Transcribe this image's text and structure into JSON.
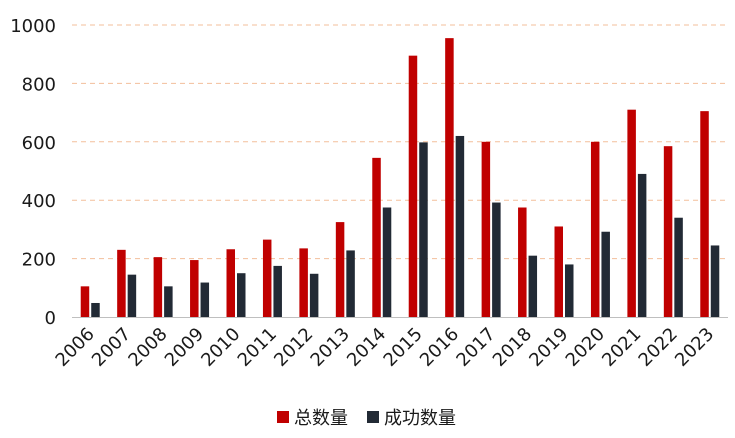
{
  "chart_data": {
    "type": "bar",
    "title": "",
    "xlabel": "",
    "ylabel": "",
    "ylim": [
      0,
      1000
    ],
    "yticks": [
      0,
      200,
      400,
      600,
      800,
      1000
    ],
    "grid": "horizontal-dashed",
    "legend_position": "bottom-center",
    "categories": [
      "2006",
      "2007",
      "2008",
      "2009",
      "2010",
      "2011",
      "2012",
      "2013",
      "2014",
      "2015",
      "2016",
      "2017",
      "2018",
      "2019",
      "2020",
      "2021",
      "2022",
      "2023"
    ],
    "series": [
      {
        "name": "总数量",
        "color": "#c00000",
        "values": [
          105,
          230,
          205,
          195,
          232,
          265,
          235,
          325,
          545,
          895,
          955,
          600,
          375,
          310,
          600,
          710,
          585,
          705
        ]
      },
      {
        "name": "成功数量",
        "color": "#222a35",
        "values": [
          48,
          145,
          105,
          118,
          150,
          175,
          148,
          228,
          375,
          598,
          620,
          392,
          210,
          180,
          292,
          490,
          340,
          245
        ]
      }
    ]
  }
}
